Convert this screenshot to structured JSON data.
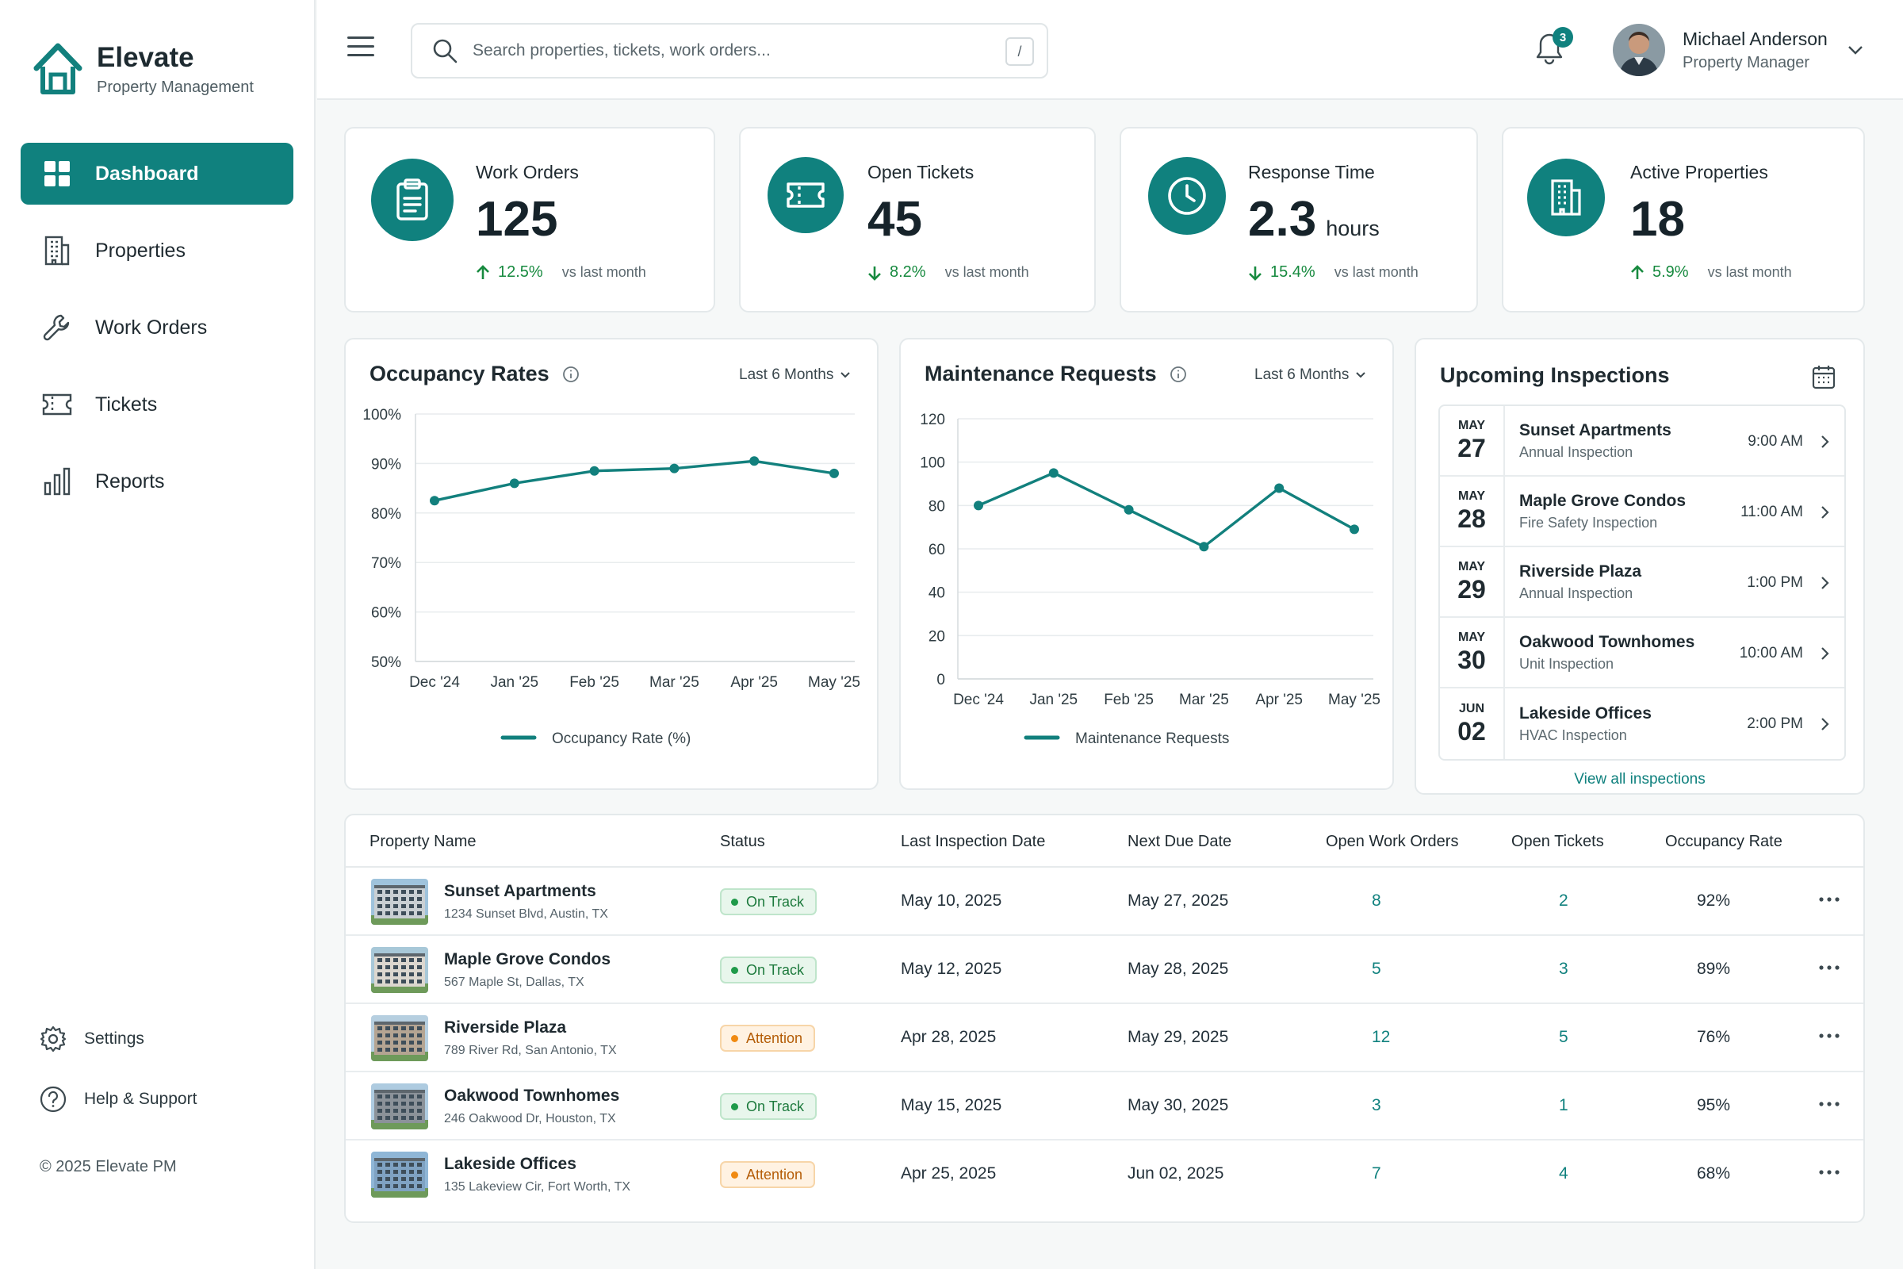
{
  "brand": {
    "name": "Elevate",
    "subtitle": "Property Management"
  },
  "sidebar": {
    "items": [
      {
        "label": "Dashboard",
        "icon": "dashboard-icon",
        "active": true
      },
      {
        "label": "Properties",
        "icon": "building-icon",
        "active": false
      },
      {
        "label": "Work Orders",
        "icon": "wrench-icon",
        "active": false
      },
      {
        "label": "Tickets",
        "icon": "ticket-icon",
        "active": false
      },
      {
        "label": "Reports",
        "icon": "bar-chart-icon",
        "active": false
      }
    ],
    "bottom": [
      {
        "label": "Settings",
        "icon": "gear-icon"
      },
      {
        "label": "Help & Support",
        "icon": "help-icon"
      }
    ],
    "copyright": "© 2025 Elevate PM"
  },
  "header": {
    "search_placeholder": "Search properties, tickets, work orders...",
    "search_shortcut": "/",
    "notification_count": "3",
    "user": {
      "name": "Michael Anderson",
      "role": "Property Manager"
    }
  },
  "stats": [
    {
      "title": "Work Orders",
      "value": "125",
      "unit": "",
      "change": "12.5%",
      "direction": "up",
      "vs": "vs last month",
      "icon": "clipboard-icon"
    },
    {
      "title": "Open Tickets",
      "value": "45",
      "unit": "",
      "change": "8.2%",
      "direction": "down",
      "vs": "vs last month",
      "icon": "ticket-icon"
    },
    {
      "title": "Response Time",
      "value": "2.3",
      "unit": "hours",
      "change": "15.4%",
      "direction": "down",
      "vs": "vs last month",
      "icon": "clock-icon"
    },
    {
      "title": "Active Properties",
      "value": "18",
      "unit": "",
      "change": "5.9%",
      "direction": "up",
      "vs": "vs last month",
      "icon": "building-icon"
    }
  ],
  "chart_data": [
    {
      "type": "line",
      "title": "Occupancy Rates",
      "period": "Last 6 Months",
      "x": [
        "Dec '24",
        "Jan '25",
        "Feb '25",
        "Mar '25",
        "Apr '25",
        "May '25"
      ],
      "series": [
        {
          "name": "Occupancy Rate (%)",
          "values": [
            82.5,
            86,
            88.5,
            89,
            90.5,
            88
          ]
        }
      ],
      "ylim": [
        50,
        100
      ],
      "yticks": [
        50,
        60,
        70,
        80,
        90,
        100
      ],
      "ytick_labels": [
        "50%",
        "60%",
        "70%",
        "80%",
        "90%",
        "100%"
      ],
      "grid": true,
      "legend": "bottom",
      "color": "#12807d"
    },
    {
      "type": "line",
      "title": "Maintenance Requests",
      "period": "Last 6 Months",
      "x": [
        "Dec '24",
        "Jan '25",
        "Feb '25",
        "Mar '25",
        "Apr '25",
        "May '25"
      ],
      "series": [
        {
          "name": "Maintenance Requests",
          "values": [
            80,
            95,
            78,
            61,
            88,
            69
          ]
        }
      ],
      "ylim": [
        0,
        120
      ],
      "yticks": [
        0,
        20,
        40,
        60,
        80,
        100,
        120
      ],
      "ytick_labels": [
        "0",
        "20",
        "40",
        "60",
        "80",
        "100",
        "120"
      ],
      "grid": true,
      "legend": "bottom",
      "color": "#12807d"
    }
  ],
  "inspections": {
    "title": "Upcoming Inspections",
    "view_all": "View all inspections",
    "items": [
      {
        "month": "MAY",
        "day": "27",
        "name": "Sunset Apartments",
        "type": "Annual Inspection",
        "time": "9:00 AM"
      },
      {
        "month": "MAY",
        "day": "28",
        "name": "Maple Grove Condos",
        "type": "Fire Safety Inspection",
        "time": "11:00 AM"
      },
      {
        "month": "MAY",
        "day": "29",
        "name": "Riverside Plaza",
        "type": "Annual Inspection",
        "time": "1:00 PM"
      },
      {
        "month": "MAY",
        "day": "30",
        "name": "Oakwood Townhomes",
        "type": "Unit Inspection",
        "time": "10:00 AM"
      },
      {
        "month": "JUN",
        "day": "02",
        "name": "Lakeside Offices",
        "type": "HVAC Inspection",
        "time": "2:00 PM"
      }
    ]
  },
  "table": {
    "columns": [
      "Property Name",
      "Status",
      "Last Inspection Date",
      "Next Due Date",
      "Open Work Orders",
      "Open Tickets",
      "Occupancy Rate"
    ],
    "rows": [
      {
        "name": "Sunset Apartments",
        "address": "1234 Sunset Blvd, Austin, TX",
        "status": "On Track",
        "status_kind": "ok",
        "last": "May 10, 2025",
        "next": "May 27, 2025",
        "work_orders": "8",
        "tickets": "2",
        "occupancy": "92%"
      },
      {
        "name": "Maple Grove Condos",
        "address": "567 Maple St, Dallas, TX",
        "status": "On Track",
        "status_kind": "ok",
        "last": "May 12, 2025",
        "next": "May 28, 2025",
        "work_orders": "5",
        "tickets": "3",
        "occupancy": "89%"
      },
      {
        "name": "Riverside Plaza",
        "address": "789 River Rd, San Antonio, TX",
        "status": "Attention",
        "status_kind": "warn",
        "last": "Apr 28, 2025",
        "next": "May 29, 2025",
        "work_orders": "12",
        "tickets": "5",
        "occupancy": "76%"
      },
      {
        "name": "Oakwood Townhomes",
        "address": "246 Oakwood Dr, Houston, TX",
        "status": "On Track",
        "status_kind": "ok",
        "last": "May 15, 2025",
        "next": "May 30, 2025",
        "work_orders": "3",
        "tickets": "1",
        "occupancy": "95%"
      },
      {
        "name": "Lakeside Offices",
        "address": "135 Lakeview Cir, Fort Worth, TX",
        "status": "Attention",
        "status_kind": "warn",
        "last": "Apr 25, 2025",
        "next": "Jun 02, 2025",
        "work_orders": "7",
        "tickets": "4",
        "occupancy": "68%"
      }
    ]
  },
  "colors": {
    "accent": "#10817e",
    "positive": "#178a3f",
    "warning": "#f08a12"
  }
}
